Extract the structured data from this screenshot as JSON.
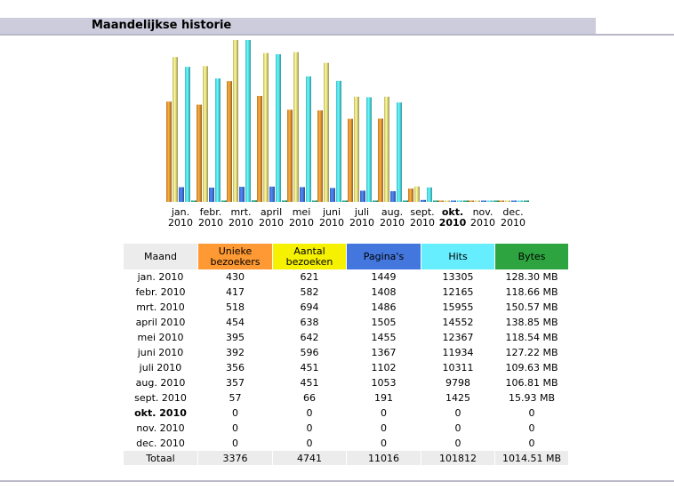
{
  "header": {
    "title": "Maandelijkse historie"
  },
  "table": {
    "headers": [
      "Maand",
      "Unieke bezoekers",
      "Aantal bezoeken",
      "Pagina's",
      "Hits",
      "Bytes"
    ],
    "rows": [
      [
        "jan. 2010",
        "430",
        "621",
        "1449",
        "13305",
        "128.30 MB"
      ],
      [
        "febr. 2010",
        "417",
        "582",
        "1408",
        "12165",
        "118.66 MB"
      ],
      [
        "mrt. 2010",
        "518",
        "694",
        "1486",
        "15955",
        "150.57 MB"
      ],
      [
        "april 2010",
        "454",
        "638",
        "1505",
        "14552",
        "138.85 MB"
      ],
      [
        "mei 2010",
        "395",
        "642",
        "1455",
        "12367",
        "118.54 MB"
      ],
      [
        "juni 2010",
        "392",
        "596",
        "1367",
        "11934",
        "127.22 MB"
      ],
      [
        "juli 2010",
        "356",
        "451",
        "1102",
        "10311",
        "109.63 MB"
      ],
      [
        "aug. 2010",
        "357",
        "451",
        "1053",
        "9798",
        "106.81 MB"
      ],
      [
        "sept. 2010",
        "57",
        "66",
        "191",
        "1425",
        "15.93 MB"
      ],
      [
        "okt. 2010",
        "0",
        "0",
        "0",
        "0",
        "0"
      ],
      [
        "nov. 2010",
        "0",
        "0",
        "0",
        "0",
        "0"
      ],
      [
        "dec. 2010",
        "0",
        "0",
        "0",
        "0",
        "0"
      ]
    ],
    "current_row": 9,
    "total": [
      "Totaal",
      "3376",
      "4741",
      "11016",
      "101812",
      "1014.51 MB"
    ]
  },
  "colors": {
    "unieke": "#ff9933",
    "aantal": "#f6f100",
    "paginas": "#4477dd",
    "hits": "#66eeff",
    "bytes": "#2ea440",
    "header_bg": "#ccccdd"
  },
  "chart_data": {
    "type": "bar",
    "categories": [
      "jan. 2010",
      "febr. 2010",
      "mrt. 2010",
      "april 2010",
      "mei 2010",
      "juni 2010",
      "juli 2010",
      "aug. 2010",
      "sept. 2010",
      "okt. 2010",
      "nov. 2010",
      "dec. 2010"
    ],
    "category_lines": [
      [
        "jan.",
        "2010"
      ],
      [
        "febr.",
        "2010"
      ],
      [
        "mrt.",
        "2010"
      ],
      [
        "april",
        "2010"
      ],
      [
        "mei",
        "2010"
      ],
      [
        "juni",
        "2010"
      ],
      [
        "juli",
        "2010"
      ],
      [
        "aug.",
        "2010"
      ],
      [
        "sept.",
        "2010"
      ],
      [
        "okt.",
        "2010"
      ],
      [
        "nov.",
        "2010"
      ],
      [
        "dec.",
        "2010"
      ]
    ],
    "highlight_index": 9,
    "series": [
      {
        "name": "Unieke bezoekers",
        "color": "#d98c30",
        "values": [
          430,
          417,
          518,
          454,
          395,
          392,
          356,
          357,
          57,
          0,
          0,
          0
        ]
      },
      {
        "name": "Aantal bezoeken",
        "color": "#e0d27a",
        "values": [
          621,
          582,
          694,
          638,
          642,
          596,
          451,
          451,
          66,
          0,
          0,
          0
        ]
      },
      {
        "name": "Pagina's",
        "color": "#3f6fd8",
        "values": [
          1449,
          1408,
          1486,
          1505,
          1455,
          1367,
          1102,
          1053,
          191,
          0,
          0,
          0
        ]
      },
      {
        "name": "Hits",
        "color": "#4fd4e4",
        "values": [
          13305,
          12165,
          15955,
          14552,
          12367,
          11934,
          10311,
          9798,
          1425,
          0,
          0,
          0
        ]
      },
      {
        "name": "Bytes",
        "color": "#1f9a7a",
        "values": [
          128.3,
          118.66,
          150.57,
          138.85,
          118.54,
          127.22,
          109.63,
          106.81,
          15.93,
          0,
          0,
          0
        ]
      }
    ],
    "scale_groups": [
      [
        0,
        1
      ],
      [
        2,
        3,
        4
      ]
    ]
  }
}
